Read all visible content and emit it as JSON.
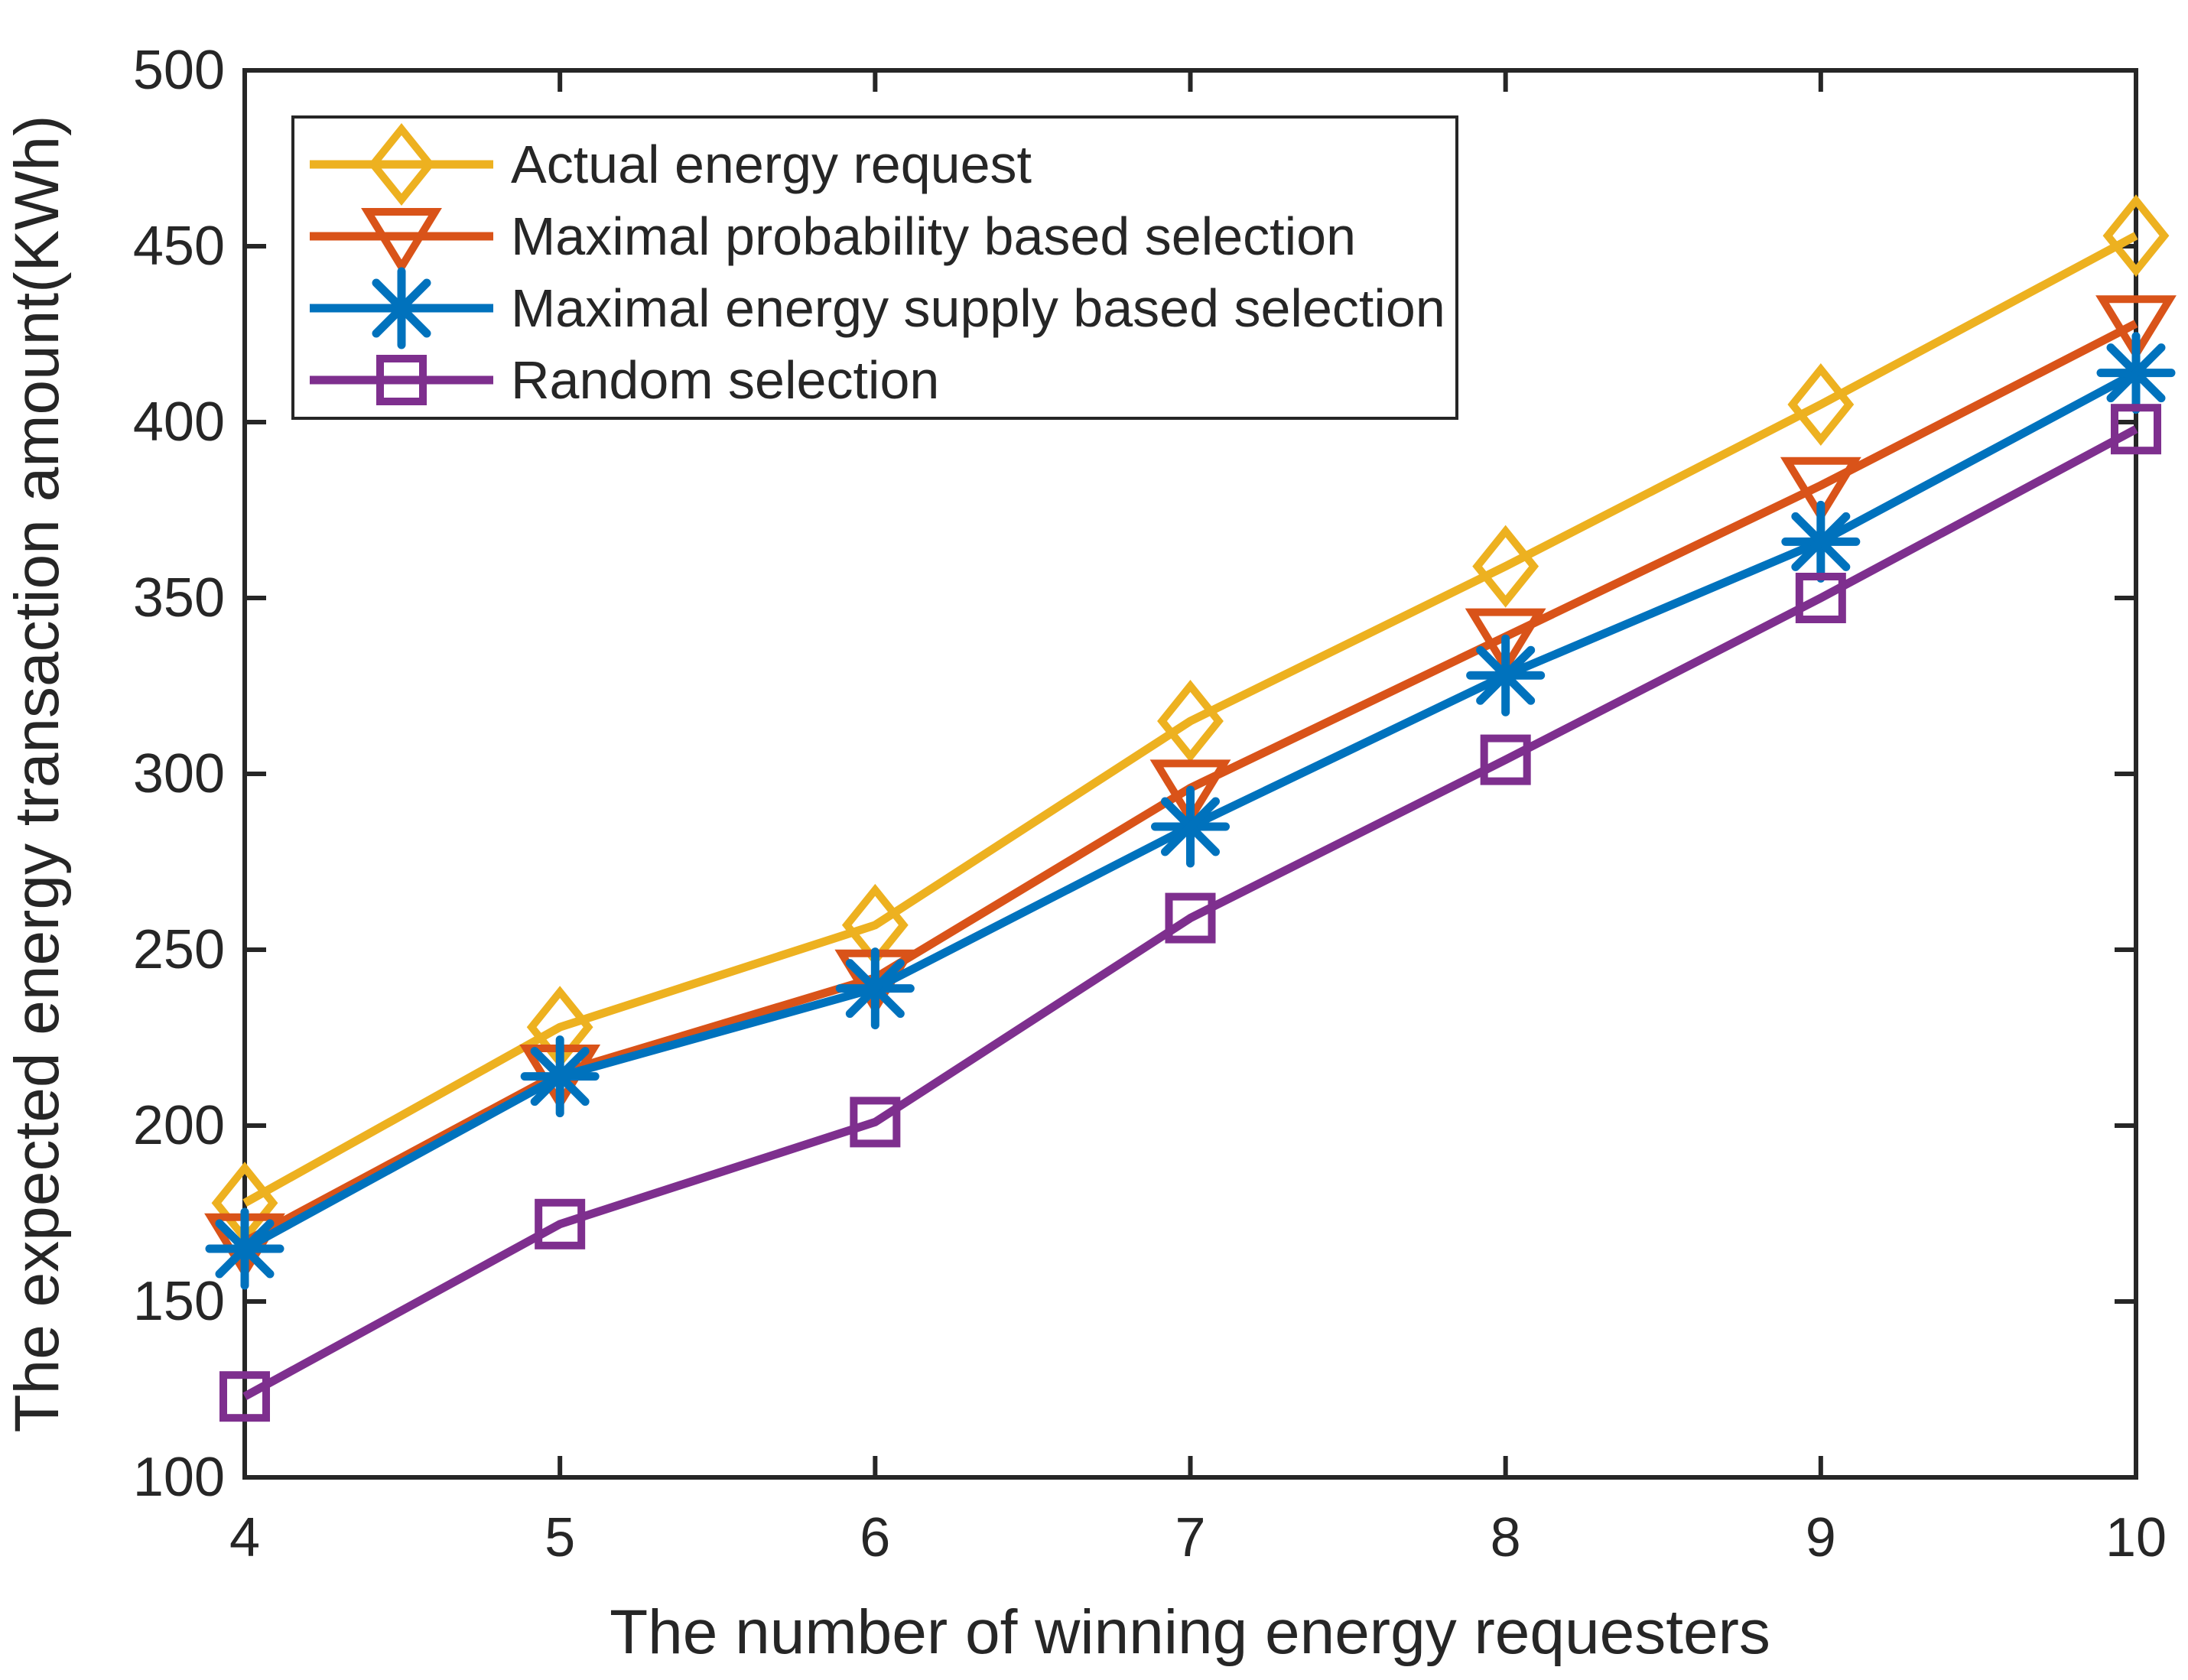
{
  "figure": {
    "background": "#ffffff",
    "axis_color": "#262626",
    "text_color": "#262626"
  },
  "chart_data": {
    "type": "line",
    "x": [
      4,
      5,
      6,
      7,
      8,
      9,
      10
    ],
    "xlabel": "The number of winning energy requesters",
    "ylabel": "The expected energy transaction amount(KWh)",
    "xlim": [
      4,
      10
    ],
    "ylim": [
      100,
      500
    ],
    "xticks": [
      "4",
      "5",
      "6",
      "7",
      "8",
      "9",
      "10"
    ],
    "yticks": [
      "100",
      "150",
      "200",
      "250",
      "300",
      "350",
      "400",
      "450",
      "500"
    ],
    "ytick_values": [
      100,
      150,
      200,
      250,
      300,
      350,
      400,
      450,
      500
    ],
    "grid": false,
    "legend_position": "top-left",
    "series": [
      {
        "name": "Actual energy request",
        "color": "#EDB120",
        "marker": "diamond",
        "values": [
          178,
          228,
          257,
          315,
          359,
          405,
          453
        ]
      },
      {
        "name": "Maximal probability based selection",
        "color": "#D95319",
        "marker": "triangle-down",
        "values": [
          167,
          215,
          242,
          296,
          339,
          382,
          428
        ]
      },
      {
        "name": "Maximal energy supply based selection",
        "color": "#0072BD",
        "marker": "asterisk",
        "values": [
          165,
          214,
          239,
          285,
          328,
          366,
          414
        ]
      },
      {
        "name": "Random selection",
        "color": "#7E2F8E",
        "marker": "square",
        "values": [
          123,
          172,
          201,
          259,
          304,
          350,
          398
        ]
      }
    ]
  }
}
